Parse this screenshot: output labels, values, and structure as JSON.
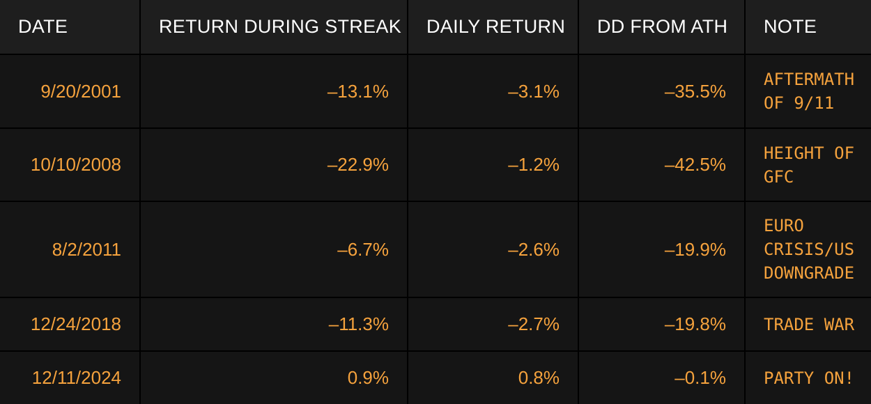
{
  "chart_data": {
    "type": "table",
    "columns": [
      "DATE",
      "RETURN DURING STREAK",
      "DAILY RETURN",
      "DD FROM ATH",
      "NOTE"
    ],
    "rows": [
      {
        "date": "9/20/2001",
        "return_during_streak": "–13.1%",
        "daily_return": "–3.1%",
        "dd_from_ath": "–35.5%",
        "note": "AFTERMATH\nOF 9/11"
      },
      {
        "date": "10/10/2008",
        "return_during_streak": "–22.9%",
        "daily_return": "–1.2%",
        "dd_from_ath": "–42.5%",
        "note": "HEIGHT OF\nGFC"
      },
      {
        "date": "8/2/2011",
        "return_during_streak": "–6.7%",
        "daily_return": "–2.6%",
        "dd_from_ath": "–19.9%",
        "note": "EURO\nCRISIS/US\nDOWNGRADE"
      },
      {
        "date": "12/24/2018",
        "return_during_streak": "–11.3%",
        "daily_return": "–2.7%",
        "dd_from_ath": "–19.8%",
        "note": "TRADE WAR"
      },
      {
        "date": "12/11/2024",
        "return_during_streak": "0.9%",
        "daily_return": "0.8%",
        "dd_from_ath": "–0.1%",
        "note": "PARTY ON!"
      }
    ]
  },
  "colors": {
    "background": "#000000",
    "header_bg": "#1e1e1e",
    "header_text": "#ffffff",
    "row_bg": "#151515",
    "value_text": "#f5a23d"
  }
}
